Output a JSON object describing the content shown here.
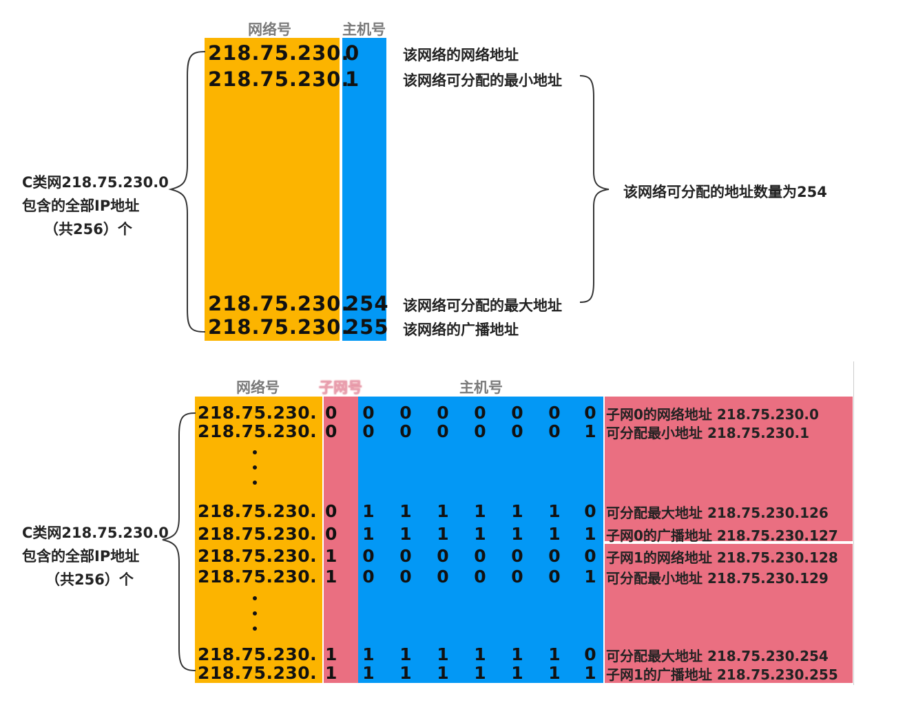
{
  "colors": {
    "network": "#fcb400",
    "host": "#0398f5",
    "subnet": "#ea6f81",
    "label_area": "#ea6f81"
  },
  "top": {
    "header_network": "网络号",
    "header_host": "主机号",
    "side_label": [
      "C类网218.75.230.0",
      "包含的全部IP地址",
      "（共256）个"
    ],
    "rows": [
      {
        "prefix": "218.75.230.",
        "host": "0",
        "label": "该网络的网络地址"
      },
      {
        "prefix": "218.75.230.",
        "host": "1",
        "label": "该网络可分配的最小地址"
      },
      {
        "prefix": "218.75.230.",
        "host": "254",
        "label": "该网络可分配的最大地址"
      },
      {
        "prefix": "218.75.230.",
        "host": "255",
        "label": "该网络的广播地址"
      }
    ],
    "count_label": "该网络可分配的地址数量为254"
  },
  "bottom": {
    "header_network": "网络号",
    "header_subnet": "子网号",
    "header_host": "主机号",
    "side_label": [
      "C类网218.75.230.0",
      "包含的全部IP地址",
      "（共256）个"
    ],
    "rows": [
      {
        "prefix": "218.75.230.",
        "subnet": "0",
        "bits": [
          "0",
          "0",
          "0",
          "0",
          "0",
          "0",
          "0"
        ],
        "label": "子网0的网络地址 218.75.230.0"
      },
      {
        "prefix": "218.75.230.",
        "subnet": "0",
        "bits": [
          "0",
          "0",
          "0",
          "0",
          "0",
          "0",
          "1"
        ],
        "label": "可分配最小地址 218.75.230.1"
      },
      {
        "prefix": "218.75.230.",
        "subnet": "0",
        "bits": [
          "1",
          "1",
          "1",
          "1",
          "1",
          "1",
          "0"
        ],
        "label": "可分配最大地址 218.75.230.126"
      },
      {
        "prefix": "218.75.230.",
        "subnet": "0",
        "bits": [
          "1",
          "1",
          "1",
          "1",
          "1",
          "1",
          "1"
        ],
        "label": "子网0的广播地址 218.75.230.127"
      },
      {
        "prefix": "218.75.230.",
        "subnet": "1",
        "bits": [
          "0",
          "0",
          "0",
          "0",
          "0",
          "0",
          "0"
        ],
        "label": "子网1的网络地址 218.75.230.128"
      },
      {
        "prefix": "218.75.230.",
        "subnet": "1",
        "bits": [
          "0",
          "0",
          "0",
          "0",
          "0",
          "0",
          "1"
        ],
        "label": "可分配最小地址 218.75.230.129"
      },
      {
        "prefix": "218.75.230.",
        "subnet": "1",
        "bits": [
          "1",
          "1",
          "1",
          "1",
          "1",
          "1",
          "0"
        ],
        "label": "可分配最大地址 218.75.230.254"
      },
      {
        "prefix": "218.75.230.",
        "subnet": "1",
        "bits": [
          "1",
          "1",
          "1",
          "1",
          "1",
          "1",
          "1"
        ],
        "label": "子网1的广播地址 218.75.230.255"
      }
    ]
  }
}
